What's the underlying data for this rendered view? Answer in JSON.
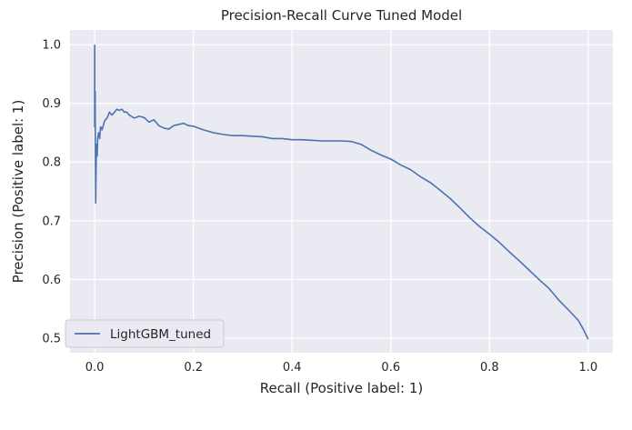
{
  "chart_data": {
    "type": "line",
    "title": "Precision-Recall Curve Tuned Model",
    "xlabel": "Recall (Positive label: 1)",
    "ylabel": "Precision (Positive label: 1)",
    "xlim": [
      -0.05,
      1.05
    ],
    "ylim": [
      0.475,
      1.025
    ],
    "xticks": [
      0.0,
      0.2,
      0.4,
      0.6,
      0.8,
      1.0
    ],
    "xtick_labels": [
      "0.0",
      "0.2",
      "0.4",
      "0.6",
      "0.8",
      "1.0"
    ],
    "yticks": [
      0.5,
      0.6,
      0.7,
      0.8,
      0.9,
      1.0
    ],
    "ytick_labels": [
      "0.5",
      "0.6",
      "0.7",
      "0.8",
      "0.9",
      "1.0"
    ],
    "grid": true,
    "legend_position": "lower-left",
    "colors": {
      "background": "#eaeaf2",
      "grid": "#ffffff",
      "line": "#4c72b0"
    },
    "series": [
      {
        "name": "LightGBM_tuned",
        "x": [
          0.0,
          0.0,
          0.001,
          0.001,
          0.002,
          0.002,
          0.003,
          0.004,
          0.005,
          0.006,
          0.008,
          0.01,
          0.012,
          0.015,
          0.02,
          0.025,
          0.03,
          0.035,
          0.04,
          0.045,
          0.05,
          0.055,
          0.06,
          0.065,
          0.07,
          0.08,
          0.09,
          0.1,
          0.11,
          0.12,
          0.13,
          0.14,
          0.15,
          0.16,
          0.17,
          0.18,
          0.19,
          0.2,
          0.22,
          0.24,
          0.26,
          0.28,
          0.3,
          0.32,
          0.34,
          0.36,
          0.38,
          0.4,
          0.42,
          0.44,
          0.46,
          0.48,
          0.5,
          0.52,
          0.54,
          0.56,
          0.58,
          0.6,
          0.62,
          0.64,
          0.66,
          0.68,
          0.7,
          0.72,
          0.74,
          0.76,
          0.78,
          0.8,
          0.82,
          0.84,
          0.86,
          0.88,
          0.9,
          0.92,
          0.94,
          0.96,
          0.98,
          0.99,
          1.0
        ],
        "y": [
          1.0,
          0.86,
          0.92,
          0.88,
          0.74,
          0.73,
          0.8,
          0.83,
          0.81,
          0.84,
          0.85,
          0.84,
          0.86,
          0.855,
          0.87,
          0.875,
          0.885,
          0.88,
          0.885,
          0.89,
          0.888,
          0.89,
          0.885,
          0.885,
          0.88,
          0.875,
          0.878,
          0.876,
          0.868,
          0.872,
          0.862,
          0.858,
          0.856,
          0.862,
          0.864,
          0.866,
          0.862,
          0.861,
          0.855,
          0.85,
          0.847,
          0.845,
          0.845,
          0.844,
          0.843,
          0.84,
          0.84,
          0.838,
          0.838,
          0.837,
          0.836,
          0.836,
          0.836,
          0.835,
          0.83,
          0.82,
          0.812,
          0.805,
          0.795,
          0.787,
          0.775,
          0.765,
          0.752,
          0.738,
          0.722,
          0.705,
          0.69,
          0.677,
          0.663,
          0.647,
          0.632,
          0.616,
          0.6,
          0.585,
          0.565,
          0.548,
          0.53,
          0.515,
          0.498
        ]
      }
    ]
  }
}
